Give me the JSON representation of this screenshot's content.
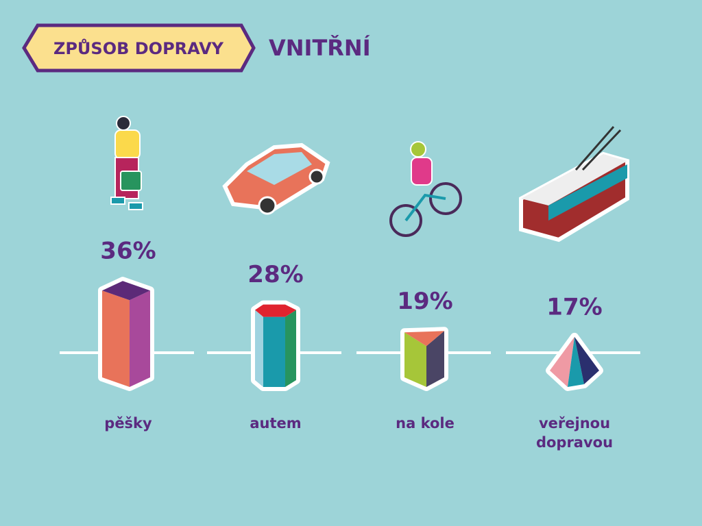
{
  "chart_data": {
    "type": "bar",
    "title": "ZPŮSOB DOPRAVY",
    "subtitle": "VNITŘNÍ",
    "categories": [
      "pěšky",
      "autem",
      "na kole",
      "veřejnou dopravou"
    ],
    "values": [
      36,
      28,
      19,
      17
    ],
    "value_labels": [
      "36%",
      "28%",
      "19%",
      "17%"
    ],
    "colors": [
      [
        "#e8735a",
        "#a8499b",
        "#5c2a78"
      ],
      [
        "#9fd3e0",
        "#1a9aab",
        "#27945e",
        "#e0232f"
      ],
      [
        "#a6c639",
        "#4a4565",
        "#e8735a"
      ],
      [
        "#ef9aa4",
        "#1a9aab",
        "#2a2f6e"
      ]
    ]
  }
}
